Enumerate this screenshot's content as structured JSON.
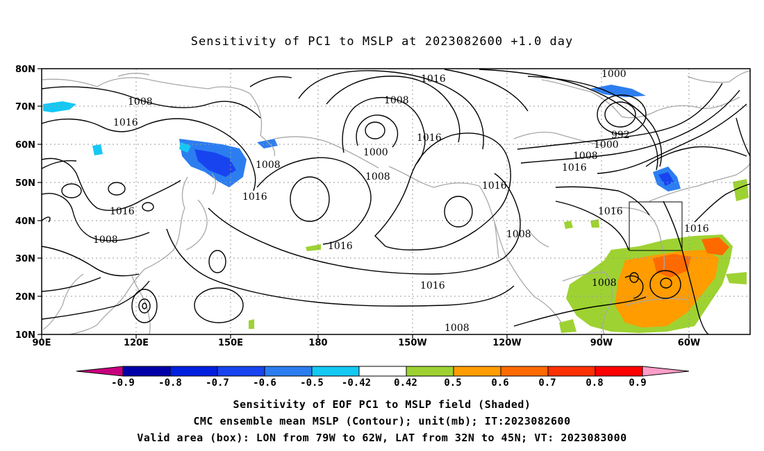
{
  "title": "Sensitivity of PC1 to MSLP at 2023082600 +1.0 day",
  "map": {
    "lat_labels": [
      "80N",
      "70N",
      "60N",
      "50N",
      "40N",
      "30N",
      "20N",
      "10N"
    ],
    "lon_labels": [
      "90E",
      "120E",
      "150E",
      "180",
      "150W",
      "120W",
      "90W",
      "60W"
    ],
    "contour_labels": [
      "1016",
      "1000",
      "1008",
      "1016",
      "1008",
      "1016",
      "1008",
      "1000",
      "1016",
      "992",
      "1008",
      "1000",
      "1016",
      "1008",
      "1008",
      "1016",
      "1016",
      "1008",
      "1016",
      "1016",
      "1016",
      "1016",
      "1008",
      "1008"
    ],
    "valid_box": {
      "lon_from": "79W",
      "lon_to": "62W",
      "lat_from": "32N",
      "lat_to": "45N"
    }
  },
  "colorbar": {
    "labels": [
      "-0.9",
      "-0.8",
      "-0.7",
      "-0.6",
      "-0.5",
      "-0.42",
      "0.42",
      "0.5",
      "0.6",
      "0.7",
      "0.8",
      "0.9"
    ],
    "colors": [
      "#c8007e",
      "#0000a8",
      "#0020e0",
      "#1844f0",
      "#2c7ef0",
      "#14c8f4",
      "#ffffff",
      "#9ed232",
      "#ff9c00",
      "#ff6a00",
      "#ff3000",
      "#ff0000",
      "#ff9ec8"
    ]
  },
  "captions": {
    "line1": "Sensitivity of EOF PC1 to MSLP field (Shaded)",
    "line2": "CMC ensemble mean MSLP (Contour); unit(mb); IT:2023082600",
    "line3": "Valid area (box): LON from 79W to 62W, LAT from 32N to 45N; VT: 2023083000"
  }
}
